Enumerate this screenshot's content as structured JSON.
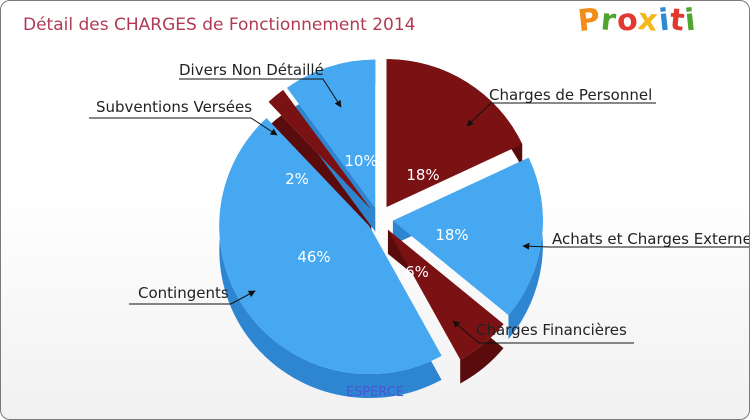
{
  "title": "Détail des CHARGES de Fonctionnement 2014",
  "logo": {
    "letters": [
      "P",
      "r",
      "o",
      "x",
      "i",
      "t",
      "i"
    ],
    "colors": [
      "#f28c1a",
      "#4fa62f",
      "#e3382f",
      "#f5b81b",
      "#2f8bd1",
      "#e3382f",
      "#4fa62f"
    ]
  },
  "footer": "ESPERCE",
  "colors": {
    "blue": "#46a8f0",
    "blue_side": "#2e86d1",
    "red": "#7a1214",
    "red_side": "#5a0b0c"
  },
  "chart_data": {
    "type": "pie",
    "title": "Détail des CHARGES de Fonctionnement 2014",
    "slices": [
      {
        "label": "Charges de Personnel",
        "value": 18,
        "value_label": "18%",
        "color": "red"
      },
      {
        "label": "Achats et Charges Externes",
        "value": 18,
        "value_label": "18%",
        "color": "blue"
      },
      {
        "label": "Charges Financières",
        "value": 6,
        "value_label": "6%",
        "color": "red"
      },
      {
        "label": "Contingents",
        "value": 46,
        "value_label": "46%",
        "color": "blue"
      },
      {
        "label": "Subventions Versées",
        "value": 2,
        "value_label": "2%",
        "color": "red"
      },
      {
        "label": "Divers Non Détaillé",
        "value": 10,
        "value_label": "10%",
        "color": "blue"
      }
    ]
  }
}
